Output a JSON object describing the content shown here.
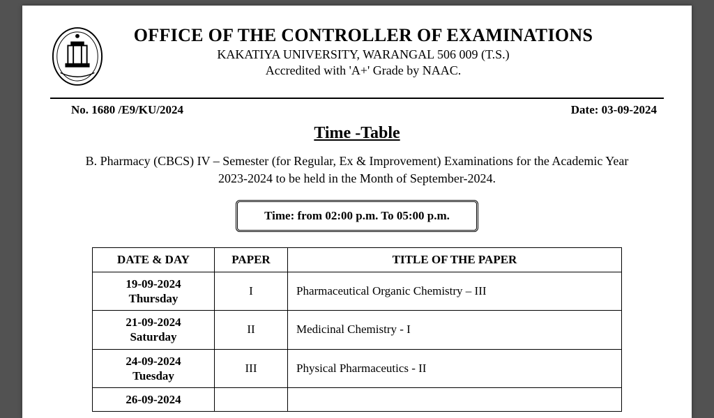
{
  "header": {
    "office_title": "OFFICE OF THE CONTROLLER OF EXAMINATIONS",
    "university": "KAKATIYA UNIVERSITY, WARANGAL 506 009 (T.S.)",
    "accredited": "Accredited with 'A+' Grade by NAAC."
  },
  "meta": {
    "ref_label": "No.  1680 /E9/KU/2024",
    "date_label": "Date:  03-09-2024"
  },
  "timetable": {
    "title": "Time -Table",
    "course_desc": "B. Pharmacy (CBCS) IV – Semester (for Regular, Ex & Improvement) Examinations for the Academic Year 2023-2024 to  be held in the Month of September-2024.",
    "time_box": "Time: from 02:00 p.m. To 05:00 p.m.",
    "columns": {
      "date": "DATE & DAY",
      "paper": "PAPER",
      "title": "TITLE OF THE PAPER"
    },
    "rows": [
      {
        "date": "19-09-2024",
        "day": "Thursday",
        "paper": "I",
        "title": "Pharmaceutical Organic Chemistry – III"
      },
      {
        "date": "21-09-2024",
        "day": "Saturday",
        "paper": "II",
        "title": "Medicinal Chemistry - I"
      },
      {
        "date": "24-09-2024",
        "day": "Tuesday",
        "paper": "III",
        "title": "Physical Pharmaceutics - II"
      },
      {
        "date": "26-09-2024",
        "day": "",
        "paper": "",
        "title": ""
      }
    ]
  },
  "colors": {
    "page_bg": "#ffffff",
    "viewer_bg": "#525252",
    "text": "#000000",
    "border": "#000000"
  }
}
